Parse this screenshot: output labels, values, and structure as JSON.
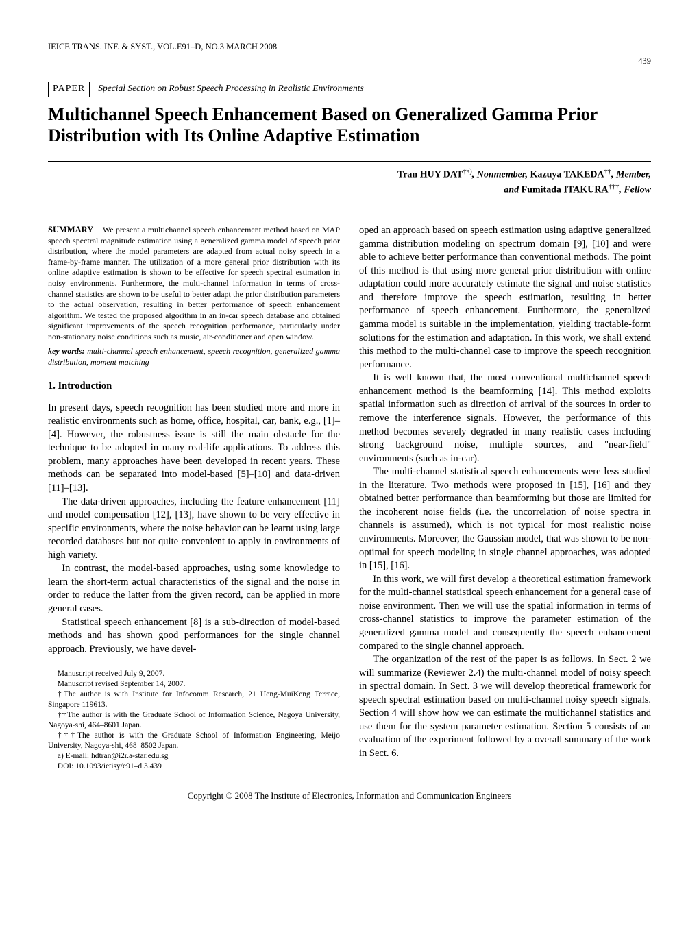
{
  "header": {
    "journal_line": "IEICE TRANS. INF. & SYST., VOL.E91–D, NO.3 MARCH 2008",
    "page_number": "439"
  },
  "paper_bar": {
    "box_label": "PAPER",
    "section_label": "Special Section on Robust Speech Processing in Realistic Environments"
  },
  "title": "Multichannel Speech Enhancement Based on Generalized Gamma Prior Distribution with Its Online Adaptive Estimation",
  "authors": {
    "line1_pre": "Tran HUY DAT",
    "line1_sup": "†a)",
    "line1_role": ", Nonmember, ",
    "line1_name2": "Kazuya TAKEDA",
    "line1_sup2": "††",
    "line1_role2": ", Member,",
    "line2_pre": "and ",
    "line2_name": "Fumitada ITAKURA",
    "line2_sup": "†††",
    "line2_role": ", Fellow"
  },
  "summary": {
    "head": "SUMMARY",
    "body": "We present a multichannel speech enhancement method based on MAP speech spectral magnitude estimation using a generalized gamma model of speech prior distribution, where the model parameters are adapted from actual noisy speech in a frame-by-frame manner. The utilization of a more general prior distribution with its online adaptive estimation is shown to be effective for speech spectral estimation in noisy environments. Furthermore, the multi-channel information in terms of cross-channel statistics are shown to be useful to better adapt the prior distribution parameters to the actual observation, resulting in better performance of speech enhancement algorithm. We tested the proposed algorithm in an in-car speech database and obtained significant improvements of the speech recognition performance, particularly under non-stationary noise conditions such as music, air-conditioner and open window."
  },
  "keywords": {
    "head": "key words:",
    "body": "multi-channel speech enhancement, speech recognition, generalized gamma distribution, moment matching"
  },
  "section1": {
    "heading": "1.   Introduction",
    "p1": "In present days, speech recognition has been studied more and more in realistic environments such as home, office, hospital, car, bank, e.g., [1]–[4]. However, the robustness issue is still the main obstacle for the technique to be adopted in many real-life applications. To address this problem, many approaches have been developed in recent years. These methods can be separated into model-based [5]–[10] and data-driven [11]–[13].",
    "p2": "The data-driven approaches, including the feature enhancement [11] and model compensation [12], [13], have shown to be very effective in specific environments, where the noise behavior can be learnt using large recorded databases but not quite convenient to apply in environments of high variety.",
    "p3": "In contrast, the model-based approaches, using some knowledge to learn the short-term actual characteristics of the signal and the noise in order to reduce the latter from the given record, can be applied in more general cases.",
    "p4": "Statistical speech enhancement [8] is a sub-direction of model-based methods and has shown good performances for the single channel approach. Previously, we have devel-"
  },
  "footnotes": {
    "f1": "Manuscript received July 9, 2007.",
    "f2": "Manuscript revised September 14, 2007.",
    "f3": "†The author is with Institute for Infocomm Research, 21 Heng-MuiKeng Terrace, Singapore 119613.",
    "f4": "††The author is with the Graduate School of Information Science, Nagoya University, Nagoya-shi, 464–8601 Japan.",
    "f5": "†††The author is with the Graduate School of Information Engineering, Meijo University, Nagoya-shi, 468–8502 Japan.",
    "f6": "a) E-mail: hdtran@i2r.a-star.edu.sg",
    "f7": "DOI: 10.1093/ietisy/e91–d.3.439"
  },
  "right_col": {
    "p1": "oped an approach based on speech estimation using adaptive generalized gamma distribution modeling on spectrum domain [9], [10] and were able to achieve better performance than conventional methods. The point of this method is that using more general prior distribution with online adaptation could more accurately estimate the signal and noise statistics and therefore improve the speech estimation, resulting in better performance of speech enhancement. Furthermore, the generalized gamma model is suitable in the implementation, yielding tractable-form solutions for the estimation and adaptation. In this work, we shall extend this method to the multi-channel case to improve the speech recognition performance.",
    "p2": "It is well known that, the most conventional multichannel speech enhancement method is the beamforming [14]. This method exploits spatial information such as direction of arrival of the sources in order to remove the interference signals. However, the performance of this method becomes severely degraded in many realistic cases including strong background noise, multiple sources, and \"near-field\" environments (such as in-car).",
    "p3": "The multi-channel statistical speech enhancements were less studied in the literature. Two methods were proposed in [15], [16] and they obtained better performance than beamforming but those are limited for the incoherent noise fields (i.e. the uncorrelation of noise spectra in channels is assumed), which is not typical for most realistic noise environments. Moreover, the Gaussian model, that was shown to be non-optimal for speech modeling in single channel approaches, was adopted in [15], [16].",
    "p4": "In this work, we will first develop a theoretical estimation framework for the multi-channel statistical speech enhancement for a general case of noise environment. Then we will use the spatial information in terms of cross-channel statistics to improve the parameter estimation of the generalized gamma model and consequently the speech enhancement compared to the single channel approach.",
    "p5": "The organization of the rest of the paper is as follows. In Sect. 2 we will summarize (Reviewer 2.4) the multi-channel model of noisy speech in spectral domain. In Sect. 3 we will develop theoretical framework for speech spectral estimation based on multi-channel noisy speech signals. Section 4 will show how we can estimate the multichannel statistics and use them for the system parameter estimation. Section 5 consists of an evaluation of the experiment followed by a overall summary of the work in Sect. 6."
  },
  "copyright": "Copyright © 2008 The Institute of Electronics, Information and Communication Engineers"
}
